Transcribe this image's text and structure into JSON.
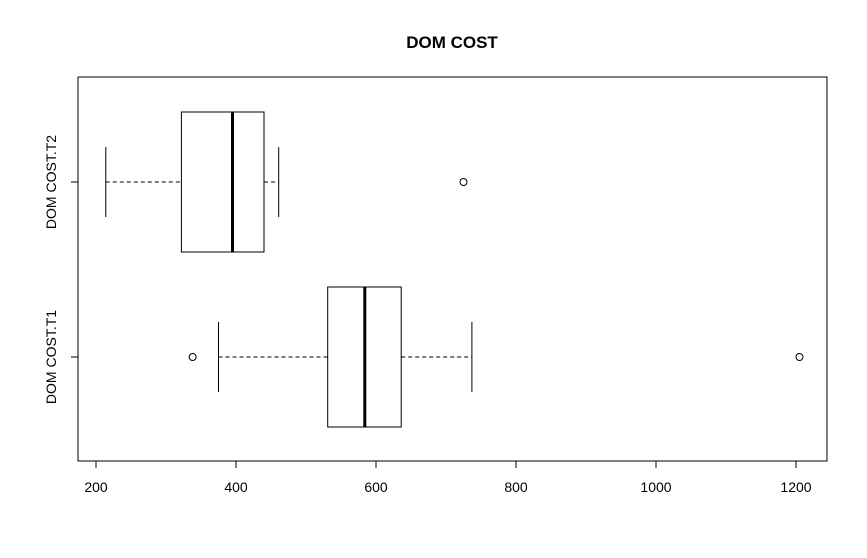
{
  "chart_data": {
    "type": "boxplot",
    "orientation": "horizontal",
    "title": "DOM COST",
    "xlabel": "",
    "ylabel": "",
    "xlim": [
      200,
      1200
    ],
    "x_ticks": [
      200,
      400,
      600,
      800,
      1000,
      1200
    ],
    "grid": false,
    "series": [
      {
        "name": "DOM COST.T1",
        "whisker_low": 375,
        "q1": 531,
        "median": 584,
        "q3": 636,
        "whisker_high": 737,
        "outliers": [
          338,
          1205
        ]
      },
      {
        "name": "DOM COST.T2",
        "whisker_low": 214,
        "q1": 322,
        "median": 395,
        "q3": 440,
        "whisker_high": 461,
        "outliers": [
          725
        ]
      }
    ]
  }
}
